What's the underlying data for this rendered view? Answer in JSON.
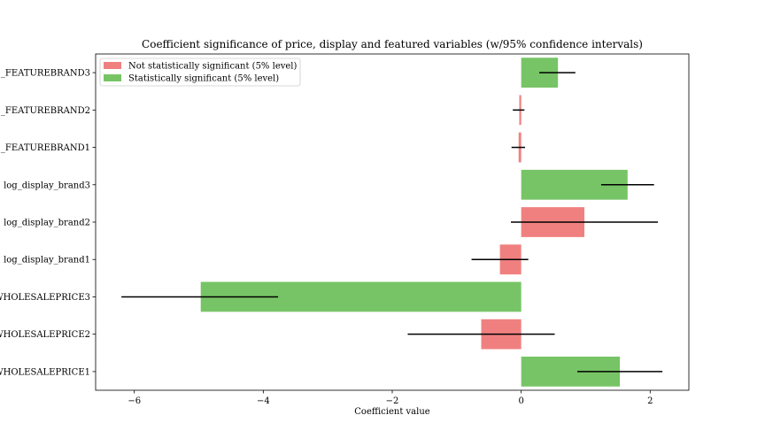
{
  "chart_data": {
    "type": "bar",
    "orientation": "horizontal",
    "title": "Coefficient significance of price, display and featured variables (w/95% confidence intervals)",
    "xlabel": "Coefficient value",
    "ylabel": "",
    "xlim": [
      -6.6,
      2.6
    ],
    "x_ticks": [
      -6,
      -4,
      -2,
      0,
      2
    ],
    "x_tick_labels": [
      "−6",
      "−4",
      "−2",
      "0",
      "2"
    ],
    "categories": [
      "WHOLESALEPRICE1",
      "WHOLESALEPRICE2",
      "WHOLESALEPRICE3",
      "log_display_brand1",
      "log_display_brand2",
      "log_display_brand3",
      "_FEATUREBRAND1",
      "_FEATUREBRAND2",
      "_FEATUREBRAND3"
    ],
    "values": [
      1.53,
      -0.62,
      -4.97,
      -0.33,
      0.98,
      1.65,
      -0.04,
      -0.03,
      0.57
    ],
    "ci_low": [
      0.87,
      -1.76,
      -6.2,
      -0.77,
      -0.16,
      1.24,
      -0.15,
      -0.13,
      0.28
    ],
    "ci_high": [
      2.19,
      0.52,
      -3.77,
      0.11,
      2.12,
      2.06,
      0.06,
      0.05,
      0.84
    ],
    "significant": [
      true,
      false,
      true,
      false,
      false,
      true,
      false,
      false,
      true
    ],
    "colors": {
      "significant": "#77c466",
      "not_significant": "#f08080",
      "errorbar": "#000000"
    },
    "legend": {
      "placement": "upper-left",
      "entries": [
        {
          "label": "Not statistically significant (5% level)",
          "color": "#f08080"
        },
        {
          "label": "Statistically significant (5% level)",
          "color": "#77c466"
        }
      ]
    },
    "grid": false
  }
}
